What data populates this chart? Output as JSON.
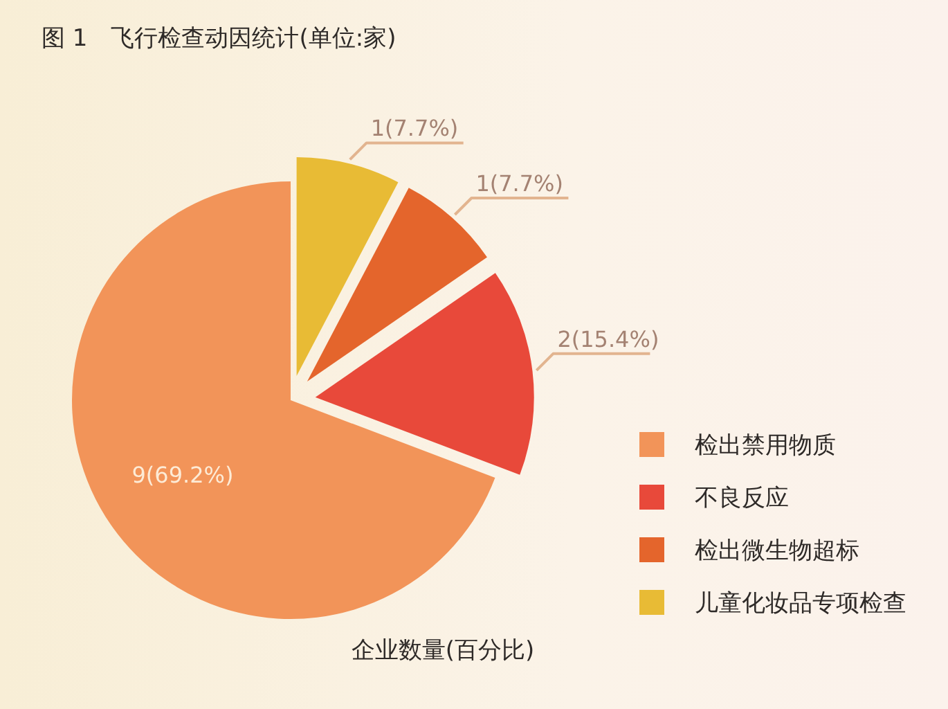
{
  "chart_data": {
    "type": "pie",
    "title": "图 1　飞行检查动因统计(单位:家)",
    "xlabel": "企业数量(百分比)",
    "categories": [
      "检出禁用物质",
      "不良反应",
      "检出微生物超标",
      "儿童化妆品专项检查"
    ],
    "values": [
      9,
      2,
      1,
      1
    ],
    "colors": [
      "#f29459",
      "#e8493a",
      "#e4652c",
      "#e8bb35"
    ],
    "value_labels": [
      "9(69.2%)",
      "2(15.4%)",
      "1(7.7%)",
      "1(7.7%)"
    ],
    "legend": "bottom right"
  }
}
